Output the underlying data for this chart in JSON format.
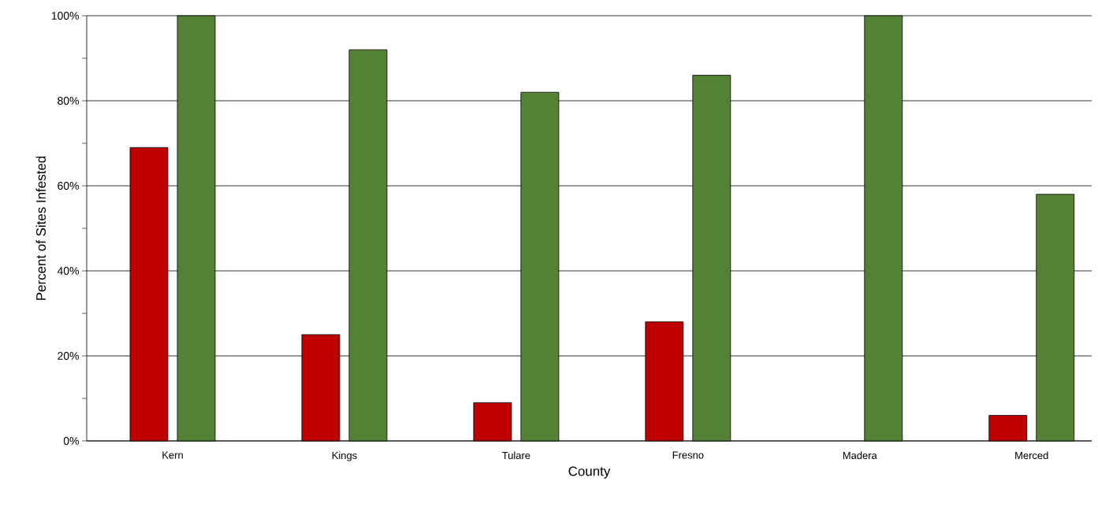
{
  "chart_data": {
    "type": "bar",
    "xlabel": "County",
    "ylabel": "Percent of Sites Infested",
    "categories": [
      "Kern",
      "Kings",
      "Tulare",
      "Fresno",
      "Madera",
      "Merced"
    ],
    "series": [
      {
        "color": "#c00000",
        "values": [
          69,
          25,
          9,
          28,
          null,
          6
        ]
      },
      {
        "color": "#548235",
        "values": [
          100,
          92,
          82,
          86,
          100,
          58
        ]
      }
    ],
    "ylim": [
      0,
      100
    ],
    "yticks": [
      {
        "value": 0,
        "label": "0%"
      },
      {
        "value": 20,
        "label": "20%"
      },
      {
        "value": 40,
        "label": "40%"
      },
      {
        "value": 60,
        "label": "60%"
      },
      {
        "value": 80,
        "label": "80%"
      },
      {
        "value": 100,
        "label": "100%"
      }
    ],
    "grid": "y"
  }
}
